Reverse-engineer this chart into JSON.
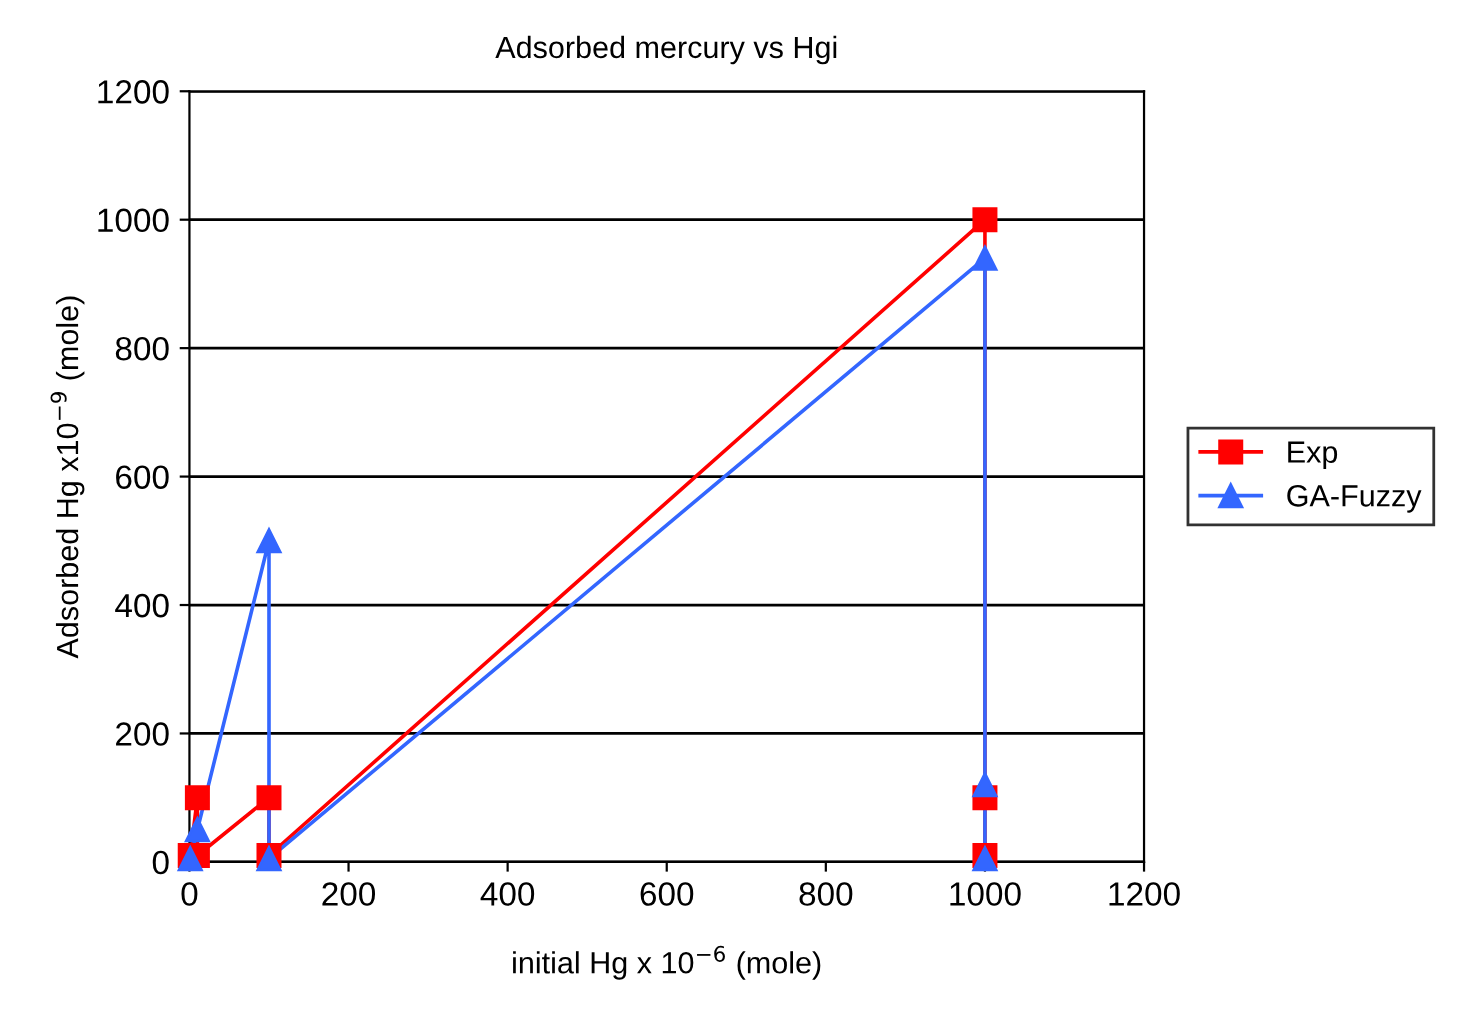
{
  "chart_data": {
    "type": "line",
    "title": "Adsorbed mercury vs Hgi",
    "xlabel": "initial Hg x 10$^{−6}$ (mole)",
    "ylabel": "Adsorbed Hg x10$^{−9}$ (mole)",
    "xlim": [
      0,
      1200
    ],
    "xticks": [
      0,
      200,
      400,
      600,
      800,
      1000,
      1200
    ],
    "ylim": [
      0,
      1200
    ],
    "yticks": [
      0,
      200,
      400,
      600,
      800,
      1000,
      1200
    ],
    "grid": "y",
    "legend": "right",
    "series": [
      {
        "name": "Exp",
        "color": "#ff0000",
        "marker": "square",
        "x": [
          1,
          10,
          10,
          100,
          100,
          1000,
          1000,
          1000
        ],
        "values": [
          10,
          100,
          10,
          100,
          10,
          1000,
          100,
          10
        ]
      },
      {
        "name": "GA-Fuzzy",
        "color": "#3366ff",
        "marker": "triangle",
        "x": [
          1,
          10,
          100,
          100,
          1000,
          1000,
          1000
        ],
        "values": [
          5,
          50,
          500,
          5,
          940,
          120,
          5
        ]
      }
    ]
  }
}
